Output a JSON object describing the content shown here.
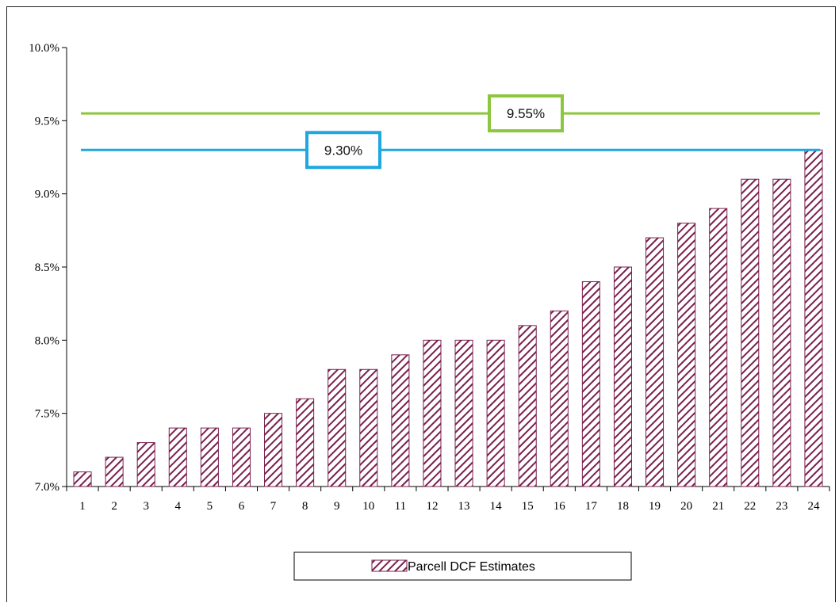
{
  "chart_data": {
    "type": "bar",
    "title": "",
    "xlabel": "",
    "ylabel": "",
    "categories": [
      "1",
      "2",
      "3",
      "4",
      "5",
      "6",
      "7",
      "8",
      "9",
      "10",
      "11",
      "12",
      "13",
      "14",
      "15",
      "16",
      "17",
      "18",
      "19",
      "20",
      "21",
      "22",
      "23",
      "24"
    ],
    "series": [
      {
        "name": "Parcell DCF Estimates",
        "values": [
          7.1,
          7.2,
          7.3,
          7.4,
          7.4,
          7.4,
          7.5,
          7.6,
          7.8,
          7.8,
          7.9,
          8.0,
          8.0,
          8.0,
          8.1,
          8.2,
          8.4,
          8.5,
          8.7,
          8.8,
          8.9,
          9.1,
          9.1,
          9.3
        ],
        "color": "#7a1f4e",
        "pattern": "diagonal-hatch"
      }
    ],
    "ylim": [
      7.0,
      10.0
    ],
    "yticks": [
      7.0,
      7.5,
      8.0,
      8.5,
      9.0,
      9.5,
      10.0
    ],
    "ytick_labels": [
      "7.0%",
      "7.5%",
      "8.0%",
      "8.5%",
      "9.0%",
      "9.5%",
      "10.0%"
    ],
    "reference_lines": [
      {
        "value": 9.55,
        "label": "9.55%",
        "color": "#8dc63f"
      },
      {
        "value": 9.3,
        "label": "9.30%",
        "color": "#1ea7e1"
      }
    ],
    "grid": false,
    "legend_position": "bottom-center"
  }
}
